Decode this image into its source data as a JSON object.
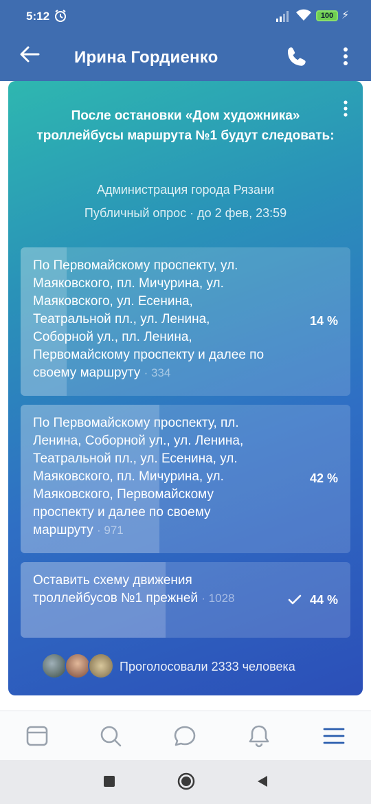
{
  "status_bar": {
    "time": "5:12",
    "battery": "100"
  },
  "header": {
    "title": "Ирина Гордиенко"
  },
  "poll": {
    "question": "После остановки «Дом художника» троллейбусы маршрута №1 будут следовать:",
    "author": "Администрация города Рязани",
    "meta": "Публичный опрос · до 2 фев, 23:59",
    "options": [
      {
        "text": "По Первомайскому проспекту, ул. Маяковского, пл. Мичурина, ул. Маяковского, ул. Есенина, Театральной пл., ул. Ленина, Соборной ул., пл. Ленина, Первомайскому проспекту и далее по своему маршруту",
        "count": "· 334",
        "percent_label": "14 %",
        "percent": 14
      },
      {
        "text": "По Первомайскому проспекту, пл. Ленина, Соборной ул., ул. Ленина, Театральной пл., ул. Есенина, ул. Маяковского, пл. Мичурина, ул. Маяковского, Первомайскому проспекту и далее по своему маршруту",
        "count": "· 971",
        "percent_label": "42 %",
        "percent": 42
      },
      {
        "text": "Оставить схему движения троллейбусов №1 прежней",
        "count": "· 1028",
        "percent_label": "44 %",
        "percent": 44,
        "voted": true
      }
    ],
    "voted_text": "Проголосовали 2333 человека"
  },
  "tabs": [
    "feed-icon",
    "search-icon",
    "messages-icon",
    "notifications-icon",
    "menu-icon"
  ],
  "colors": {
    "accent": "#2a5dae",
    "tab_inactive": "#99a2ad"
  }
}
